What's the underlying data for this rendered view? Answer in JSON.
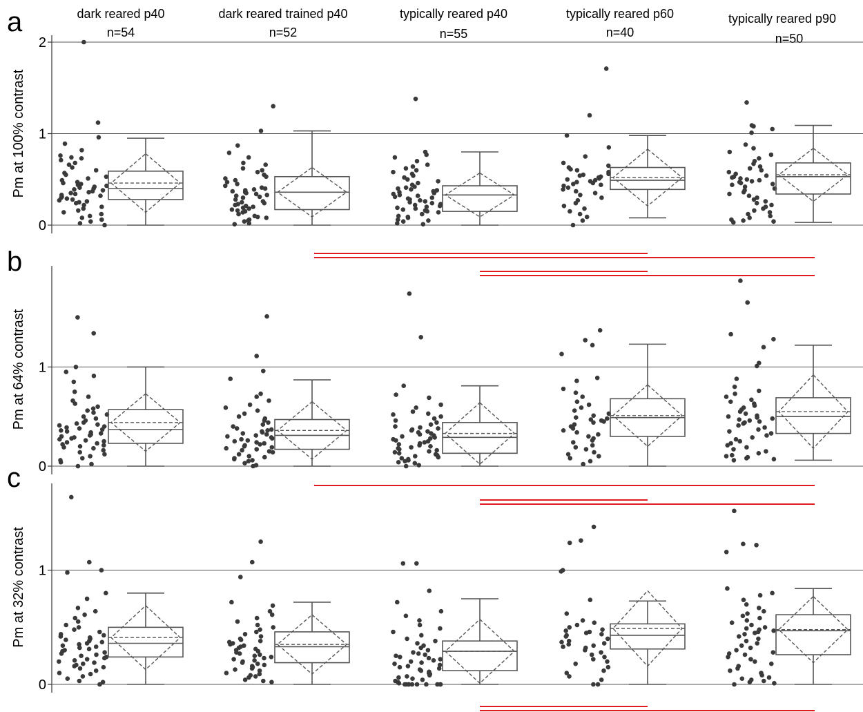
{
  "figure": {
    "groups": [
      {
        "label": "dark reared p40",
        "n": "n=54"
      },
      {
        "label": "dark reared trained p40",
        "n": "n=52"
      },
      {
        "label": "typically reared p40",
        "n": "n=55"
      },
      {
        "label": "typically reared p60",
        "n": "n=40"
      },
      {
        "label": "typically reared p90",
        "n": "n=50"
      }
    ],
    "colors": {
      "points": "#3a3a3a",
      "box": "#555555",
      "significance": "#e31a1c",
      "grid": "#555555"
    }
  },
  "chart_data": [
    {
      "type": "box",
      "panel": "a",
      "ylabel": "Pm at 100% contrast",
      "ylim": [
        0,
        2
      ],
      "yticks": [
        0,
        1,
        2
      ],
      "grid": true,
      "categories": [
        "dark reared p40",
        "dark reared trained p40",
        "typically reared p40",
        "typically reared p60",
        "typically reared p90"
      ],
      "boxes": [
        {
          "min": 0,
          "q1": 0.28,
          "median": 0.4,
          "q3": 0.59,
          "max": 0.95,
          "mean": 0.46,
          "sd": 0.32
        },
        {
          "min": 0,
          "q1": 0.17,
          "median": 0.36,
          "q3": 0.53,
          "max": 1.03,
          "mean": 0.36,
          "sd": 0.27
        },
        {
          "min": 0,
          "q1": 0.15,
          "median": 0.33,
          "q3": 0.43,
          "max": 0.8,
          "mean": 0.33,
          "sd": 0.24
        },
        {
          "min": 0.08,
          "q1": 0.39,
          "median": 0.49,
          "q3": 0.63,
          "max": 0.98,
          "mean": 0.52,
          "sd": 0.31
        },
        {
          "min": 0.03,
          "q1": 0.34,
          "median": 0.53,
          "q3": 0.68,
          "max": 1.09,
          "mean": 0.55,
          "sd": 0.29
        }
      ],
      "points": [
        [
          2.0,
          1.12,
          0.96,
          0.89,
          0.82,
          0.76,
          0.74,
          0.73,
          0.71,
          0.68,
          0.66,
          0.63,
          0.6,
          0.57,
          0.55,
          0.53,
          0.51,
          0.49,
          0.47,
          0.46,
          0.45,
          0.44,
          0.43,
          0.42,
          0.41,
          0.4,
          0.39,
          0.38,
          0.37,
          0.36,
          0.35,
          0.34,
          0.33,
          0.32,
          0.31,
          0.3,
          0.29,
          0.28,
          0.27,
          0.26,
          0.25,
          0.24,
          0.22,
          0.2,
          0.18,
          0.16,
          0.14,
          0.12,
          0.1,
          0.08,
          0.06,
          0.04,
          0.02,
          0.0
        ],
        [
          1.3,
          1.03,
          0.87,
          0.79,
          0.74,
          0.68,
          0.66,
          0.62,
          0.6,
          0.58,
          0.55,
          0.53,
          0.51,
          0.49,
          0.47,
          0.45,
          0.43,
          0.41,
          0.4,
          0.39,
          0.38,
          0.37,
          0.36,
          0.35,
          0.34,
          0.33,
          0.32,
          0.31,
          0.3,
          0.28,
          0.26,
          0.25,
          0.24,
          0.23,
          0.22,
          0.21,
          0.2,
          0.19,
          0.18,
          0.17,
          0.16,
          0.15,
          0.14,
          0.12,
          0.1,
          0.09,
          0.08,
          0.06,
          0.05,
          0.04,
          0.02,
          0.01
        ],
        [
          1.38,
          0.8,
          0.77,
          0.74,
          0.7,
          0.66,
          0.64,
          0.62,
          0.6,
          0.58,
          0.56,
          0.54,
          0.52,
          0.5,
          0.48,
          0.46,
          0.44,
          0.42,
          0.41,
          0.4,
          0.39,
          0.38,
          0.37,
          0.36,
          0.35,
          0.34,
          0.33,
          0.32,
          0.31,
          0.3,
          0.29,
          0.28,
          0.27,
          0.26,
          0.25,
          0.24,
          0.23,
          0.22,
          0.21,
          0.2,
          0.19,
          0.18,
          0.17,
          0.16,
          0.15,
          0.14,
          0.12,
          0.1,
          0.09,
          0.08,
          0.06,
          0.05,
          0.04,
          0.02,
          0.01
        ],
        [
          1.71,
          1.2,
          0.98,
          0.85,
          0.75,
          0.68,
          0.65,
          0.63,
          0.61,
          0.6,
          0.58,
          0.56,
          0.55,
          0.54,
          0.53,
          0.52,
          0.51,
          0.5,
          0.49,
          0.48,
          0.47,
          0.46,
          0.45,
          0.44,
          0.43,
          0.41,
          0.39,
          0.37,
          0.35,
          0.33,
          0.3,
          0.27,
          0.24,
          0.21,
          0.18,
          0.15,
          0.12,
          0.09,
          0.05,
          0.0
        ],
        [
          1.34,
          1.09,
          1.08,
          1.05,
          1.01,
          0.88,
          0.84,
          0.8,
          0.77,
          0.73,
          0.7,
          0.67,
          0.64,
          0.62,
          0.6,
          0.58,
          0.56,
          0.54,
          0.53,
          0.52,
          0.51,
          0.5,
          0.49,
          0.48,
          0.47,
          0.46,
          0.45,
          0.44,
          0.42,
          0.4,
          0.38,
          0.36,
          0.34,
          0.32,
          0.3,
          0.28,
          0.26,
          0.24,
          0.22,
          0.2,
          0.18,
          0.16,
          0.14,
          0.12,
          0.1,
          0.08,
          0.06,
          0.05,
          0.04,
          0.03
        ]
      ],
      "significance": []
    },
    {
      "type": "box",
      "panel": "b",
      "ylabel": "Pm at 64% contrast",
      "ylim": [
        0,
        1.95
      ],
      "yticks": [
        0,
        1
      ],
      "grid": true,
      "categories": [
        "dark reared p40",
        "dark reared trained p40",
        "typically reared p40",
        "typically reared p60",
        "typically reared p90"
      ],
      "boxes": [
        {
          "min": 0,
          "q1": 0.23,
          "median": 0.37,
          "q3": 0.57,
          "max": 1.0,
          "mean": 0.44,
          "sd": 0.29
        },
        {
          "min": 0,
          "q1": 0.17,
          "median": 0.31,
          "q3": 0.47,
          "max": 0.87,
          "mean": 0.36,
          "sd": 0.29
        },
        {
          "min": 0,
          "q1": 0.13,
          "median": 0.29,
          "q3": 0.44,
          "max": 0.81,
          "mean": 0.33,
          "sd": 0.31
        },
        {
          "min": 0,
          "q1": 0.3,
          "median": 0.49,
          "q3": 0.68,
          "max": 1.23,
          "mean": 0.51,
          "sd": 0.31
        },
        {
          "min": 0.06,
          "q1": 0.33,
          "median": 0.5,
          "q3": 0.69,
          "max": 1.22,
          "mean": 0.55,
          "sd": 0.37
        }
      ],
      "points": [
        [
          1.5,
          1.34,
          1.0,
          0.95,
          0.91,
          0.85,
          0.75,
          0.7,
          0.66,
          0.63,
          0.6,
          0.58,
          0.56,
          0.54,
          0.52,
          0.5,
          0.48,
          0.46,
          0.44,
          0.43,
          0.42,
          0.41,
          0.4,
          0.39,
          0.38,
          0.37,
          0.36,
          0.35,
          0.34,
          0.33,
          0.32,
          0.31,
          0.3,
          0.29,
          0.28,
          0.27,
          0.26,
          0.25,
          0.24,
          0.23,
          0.22,
          0.21,
          0.2,
          0.19,
          0.18,
          0.16,
          0.14,
          0.12,
          0.1,
          0.08,
          0.06,
          0.04,
          0.02,
          0.0
        ],
        [
          1.51,
          1.11,
          0.96,
          0.88,
          0.73,
          0.7,
          0.66,
          0.62,
          0.59,
          0.56,
          0.53,
          0.5,
          0.48,
          0.46,
          0.44,
          0.42,
          0.4,
          0.38,
          0.37,
          0.36,
          0.35,
          0.34,
          0.33,
          0.32,
          0.31,
          0.3,
          0.29,
          0.28,
          0.27,
          0.26,
          0.25,
          0.24,
          0.23,
          0.22,
          0.21,
          0.2,
          0.19,
          0.18,
          0.17,
          0.16,
          0.15,
          0.14,
          0.12,
          0.1,
          0.09,
          0.08,
          0.07,
          0.06,
          0.05,
          0.03,
          0.01,
          0.0
        ],
        [
          1.74,
          1.3,
          0.81,
          0.72,
          0.69,
          0.62,
          0.59,
          0.55,
          0.53,
          0.52,
          0.5,
          0.48,
          0.46,
          0.44,
          0.42,
          0.4,
          0.39,
          0.38,
          0.37,
          0.36,
          0.35,
          0.34,
          0.33,
          0.32,
          0.31,
          0.3,
          0.29,
          0.28,
          0.27,
          0.26,
          0.25,
          0.24,
          0.23,
          0.22,
          0.21,
          0.2,
          0.19,
          0.18,
          0.17,
          0.16,
          0.15,
          0.14,
          0.13,
          0.12,
          0.11,
          0.1,
          0.09,
          0.08,
          0.07,
          0.06,
          0.05,
          0.04,
          0.03,
          0.01,
          0.0
        ],
        [
          1.37,
          1.27,
          1.22,
          1.13,
          0.89,
          0.86,
          0.78,
          0.74,
          0.7,
          0.65,
          0.62,
          0.59,
          0.56,
          0.53,
          0.51,
          0.49,
          0.48,
          0.47,
          0.46,
          0.45,
          0.44,
          0.42,
          0.4,
          0.38,
          0.36,
          0.34,
          0.32,
          0.3,
          0.28,
          0.26,
          0.24,
          0.21,
          0.19,
          0.17,
          0.14,
          0.12,
          0.1,
          0.08,
          0.05,
          0.02
        ],
        [
          1.87,
          1.65,
          1.33,
          1.28,
          1.2,
          1.04,
          1.01,
          0.88,
          0.8,
          0.76,
          0.73,
          0.7,
          0.67,
          0.65,
          0.63,
          0.61,
          0.59,
          0.57,
          0.55,
          0.53,
          0.51,
          0.5,
          0.49,
          0.48,
          0.47,
          0.46,
          0.45,
          0.44,
          0.43,
          0.41,
          0.39,
          0.37,
          0.35,
          0.33,
          0.31,
          0.29,
          0.27,
          0.25,
          0.23,
          0.21,
          0.19,
          0.17,
          0.15,
          0.13,
          0.11,
          0.1,
          0.09,
          0.08,
          0.07,
          0.06
        ]
      ],
      "significance": [
        [
          1,
          3
        ],
        [
          1,
          4
        ],
        [
          2,
          3
        ],
        [
          2,
          4
        ]
      ]
    },
    {
      "type": "box",
      "panel": "c",
      "ylabel": "Pm at 32% contrast",
      "ylim": [
        0,
        1.7
      ],
      "yticks": [
        0,
        1
      ],
      "grid": true,
      "categories": [
        "dark reared p40",
        "dark reared trained p40",
        "typically reared p40",
        "typically reared p60",
        "typically reared p90"
      ],
      "boxes": [
        {
          "min": 0,
          "q1": 0.24,
          "median": 0.36,
          "q3": 0.5,
          "max": 0.8,
          "mean": 0.41,
          "sd": 0.28
        },
        {
          "min": 0,
          "q1": 0.19,
          "median": 0.33,
          "q3": 0.46,
          "max": 0.72,
          "mean": 0.35,
          "sd": 0.26
        },
        {
          "min": 0,
          "q1": 0.12,
          "median": 0.29,
          "q3": 0.38,
          "max": 0.75,
          "mean": 0.29,
          "sd": 0.28
        },
        {
          "min": 0,
          "q1": 0.31,
          "median": 0.43,
          "q3": 0.53,
          "max": 0.73,
          "mean": 0.49,
          "sd": 0.33
        },
        {
          "min": 0,
          "q1": 0.26,
          "median": 0.47,
          "q3": 0.61,
          "max": 0.84,
          "mean": 0.48,
          "sd": 0.29
        }
      ],
      "points": [
        [
          1.64,
          1.07,
          1.0,
          0.98,
          0.8,
          0.75,
          0.67,
          0.64,
          0.61,
          0.58,
          0.55,
          0.52,
          0.5,
          0.48,
          0.46,
          0.44,
          0.43,
          0.42,
          0.41,
          0.4,
          0.39,
          0.38,
          0.37,
          0.36,
          0.35,
          0.34,
          0.33,
          0.32,
          0.31,
          0.3,
          0.29,
          0.28,
          0.27,
          0.26,
          0.25,
          0.24,
          0.23,
          0.22,
          0.21,
          0.2,
          0.19,
          0.18,
          0.17,
          0.16,
          0.15,
          0.14,
          0.12,
          0.1,
          0.09,
          0.07,
          0.05,
          0.03,
          0.02,
          0.0
        ],
        [
          1.25,
          1.07,
          0.94,
          0.72,
          0.69,
          0.64,
          0.61,
          0.58,
          0.55,
          0.52,
          0.5,
          0.48,
          0.46,
          0.44,
          0.42,
          0.4,
          0.39,
          0.38,
          0.37,
          0.36,
          0.35,
          0.34,
          0.33,
          0.32,
          0.31,
          0.3,
          0.29,
          0.28,
          0.27,
          0.26,
          0.25,
          0.24,
          0.23,
          0.22,
          0.21,
          0.2,
          0.19,
          0.18,
          0.17,
          0.16,
          0.15,
          0.14,
          0.13,
          0.12,
          0.1,
          0.09,
          0.08,
          0.07,
          0.06,
          0.04,
          0.03,
          0.02
        ],
        [
          1.06,
          1.06,
          0.82,
          0.72,
          0.64,
          0.6,
          0.56,
          0.52,
          0.49,
          0.46,
          0.43,
          0.4,
          0.38,
          0.36,
          0.34,
          0.32,
          0.3,
          0.28,
          0.27,
          0.26,
          0.25,
          0.24,
          0.23,
          0.22,
          0.21,
          0.2,
          0.19,
          0.18,
          0.17,
          0.16,
          0.15,
          0.14,
          0.13,
          0.12,
          0.11,
          0.1,
          0.09,
          0.08,
          0.07,
          0.06,
          0.05,
          0.04,
          0.03,
          0.02,
          0.01,
          0.0,
          0.0,
          0.0,
          0.0,
          0.0,
          0.0,
          0.0,
          0.0,
          0.0,
          0.0
        ],
        [
          1.38,
          1.26,
          1.24,
          1.0,
          0.99,
          0.74,
          0.62,
          0.56,
          0.54,
          0.52,
          0.5,
          0.48,
          0.47,
          0.46,
          0.45,
          0.44,
          0.43,
          0.42,
          0.4,
          0.38,
          0.37,
          0.36,
          0.35,
          0.34,
          0.33,
          0.32,
          0.3,
          0.28,
          0.26,
          0.24,
          0.22,
          0.2,
          0.18,
          0.15,
          0.12,
          0.1,
          0.07,
          0.04,
          0.0,
          0.0
        ],
        [
          1.52,
          1.23,
          1.22,
          1.16,
          0.84,
          0.8,
          0.78,
          0.74,
          0.7,
          0.67,
          0.64,
          0.62,
          0.6,
          0.58,
          0.56,
          0.54,
          0.52,
          0.5,
          0.49,
          0.48,
          0.47,
          0.46,
          0.45,
          0.44,
          0.42,
          0.4,
          0.38,
          0.36,
          0.34,
          0.32,
          0.3,
          0.28,
          0.27,
          0.26,
          0.24,
          0.22,
          0.2,
          0.18,
          0.16,
          0.14,
          0.12,
          0.1,
          0.08,
          0.06,
          0.05,
          0.04,
          0.03,
          0.02,
          0.01,
          0.0
        ]
      ],
      "significance": [
        [
          1,
          4
        ],
        [
          2,
          3
        ],
        [
          2,
          4
        ]
      ]
    }
  ],
  "significance_c_below": [
    [
      2,
      3
    ],
    [
      2,
      4
    ]
  ]
}
